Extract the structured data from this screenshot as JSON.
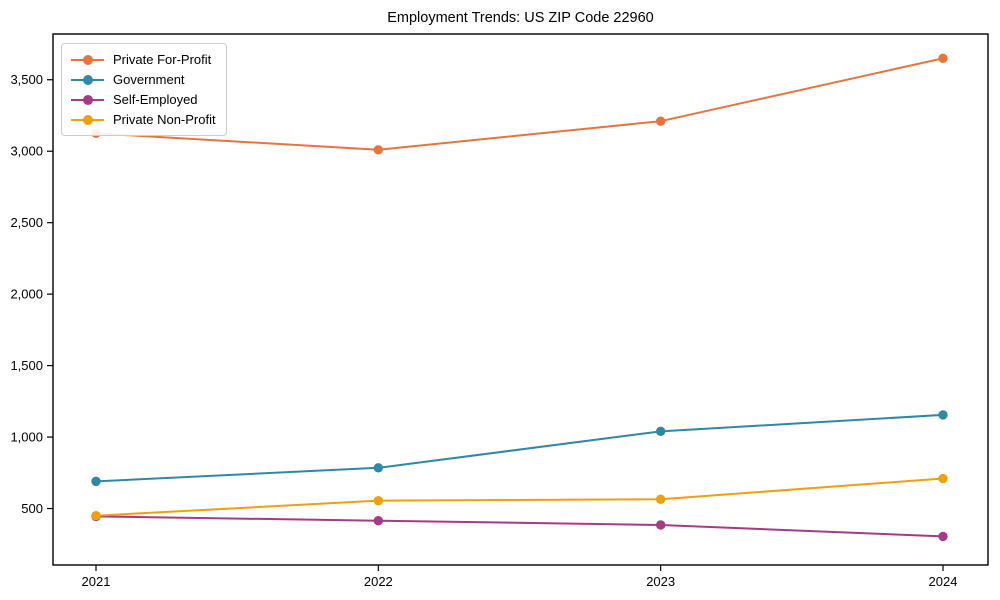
{
  "page": {
    "background": "#ffffff"
  },
  "chart_data": {
    "type": "line",
    "title": "Employment Trends: US ZIP Code 22960",
    "categories": [
      "2021",
      "2022",
      "2023",
      "2024"
    ],
    "series": [
      {
        "name": "Private For-Profit",
        "color": "#e8743b",
        "values": [
          3125,
          3010,
          3210,
          3650
        ]
      },
      {
        "name": "Government",
        "color": "#2e89a8",
        "values": [
          690,
          785,
          1040,
          1155
        ]
      },
      {
        "name": "Self-Employed",
        "color": "#a63a87",
        "values": [
          445,
          415,
          385,
          305
        ]
      },
      {
        "name": "Private Non-Profit",
        "color": "#efa00b",
        "values": [
          450,
          555,
          565,
          710
        ]
      }
    ],
    "yticks": [
      500,
      1000,
      1500,
      2000,
      2500,
      3000,
      3500
    ],
    "ytick_labels": [
      "500",
      "1,000",
      "1,500",
      "2,000",
      "2,500",
      "3,000",
      "3,500"
    ],
    "ylim": [
      105,
      3820
    ],
    "xlabel": "",
    "ylabel": "",
    "grid": false,
    "legend_position": "upper-left",
    "axis_color": "#000000",
    "tick_label_color": "#000000",
    "marker": "circle"
  }
}
